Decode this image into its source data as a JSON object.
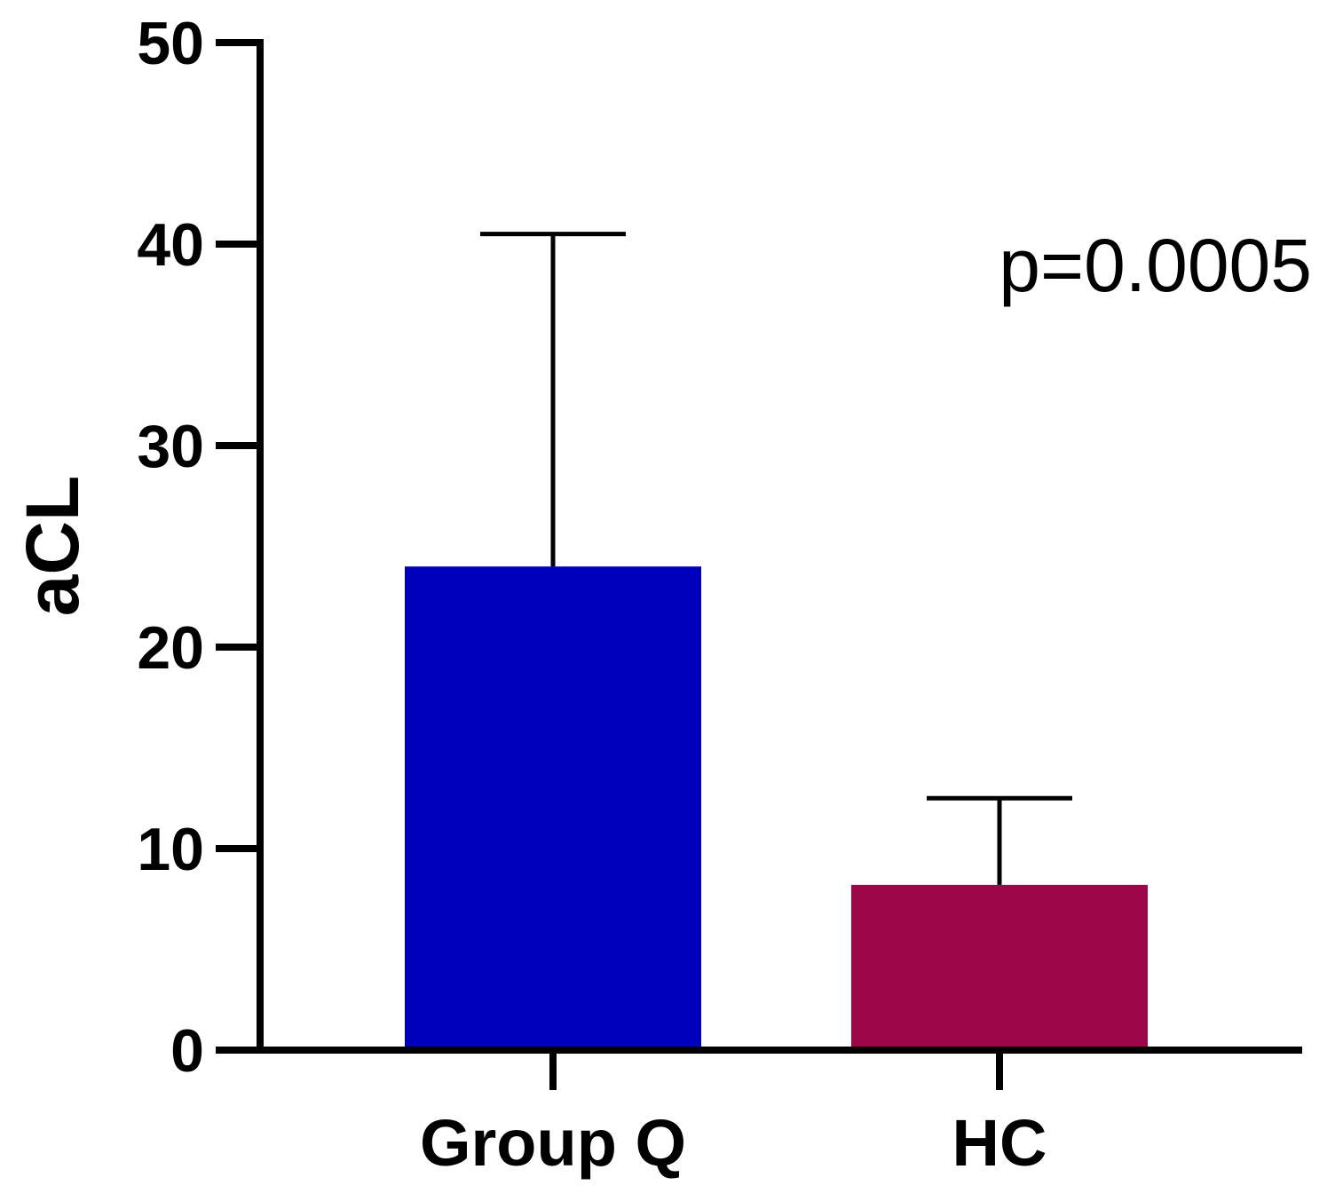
{
  "chart_data": {
    "type": "bar",
    "categories": [
      "Group Q",
      "HC"
    ],
    "values": [
      24.0,
      8.2
    ],
    "error_upper": [
      40.5,
      12.5
    ],
    "colors": [
      "#0000BB",
      "#9E064A"
    ],
    "ylabel": "aCL",
    "xlabel": "",
    "ylim": [
      0,
      50
    ],
    "yticks": [
      0,
      10,
      20,
      30,
      40,
      50
    ],
    "annotation": "p=0.0005",
    "grid": false
  }
}
